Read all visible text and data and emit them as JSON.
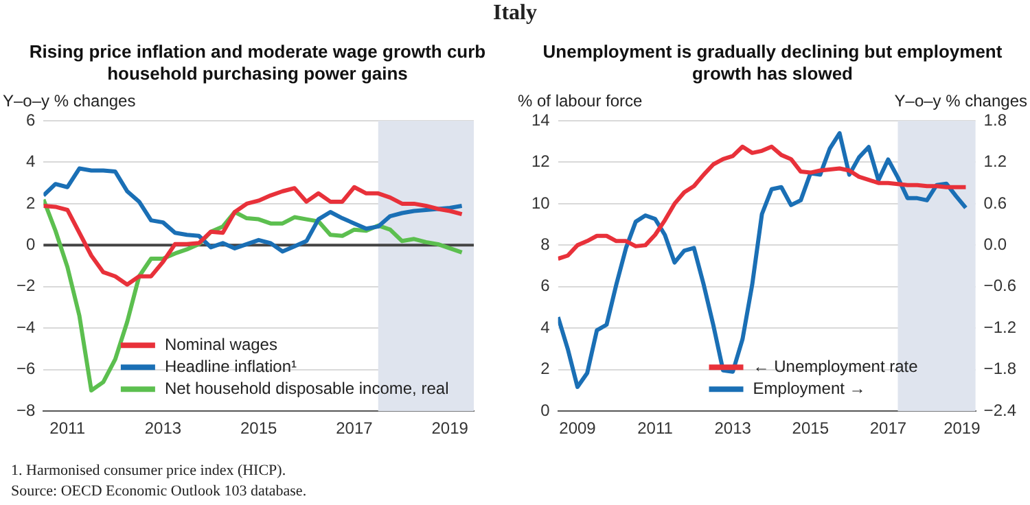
{
  "chart_data": [
    {
      "type": "line",
      "title": "Rising price inflation and moderate wage growth curb household purchasing power gains",
      "ylabel": "Y–o–y % changes",
      "annotations": [
        "Italy",
        "1.  Harmonised consumer price index (HICP).",
        "Source:  OECD Economic Outlook 103 database."
      ],
      "x": [
        2011,
        2011.25,
        2011.5,
        2011.75,
        2012,
        2012.25,
        2012.5,
        2012.75,
        2013,
        2013.25,
        2013.5,
        2013.75,
        2014,
        2014.25,
        2014.5,
        2014.75,
        2015,
        2015.25,
        2015.5,
        2015.75,
        2016,
        2016.25,
        2016.5,
        2016.75,
        2017,
        2017.25,
        2017.5,
        2017.75,
        2018,
        2018.25,
        2018.5,
        2018.75,
        2019,
        2019.25,
        2019.5,
        2019.75
      ],
      "series": [
        {
          "name": "Nominal wages",
          "color": "#e8313a",
          "values": [
            1.9,
            1.85,
            1.7,
            0.6,
            -0.5,
            -1.3,
            -1.5,
            -1.9,
            -1.5,
            -1.5,
            -0.8,
            0.05,
            0.05,
            0.1,
            0.65,
            0.6,
            1.6,
            2.0,
            2.15,
            2.4,
            2.6,
            2.75,
            2.1,
            2.5,
            2.1,
            2.1,
            2.8,
            2.5,
            2.5,
            2.3,
            2.0,
            2.0,
            1.9,
            1.75,
            1.65,
            1.5
          ]
        },
        {
          "name": "Headline inflation¹",
          "color": "#1a6fb5",
          "values": [
            2.4,
            2.95,
            2.8,
            3.7,
            3.6,
            3.6,
            3.55,
            2.6,
            2.1,
            1.2,
            1.1,
            0.6,
            0.5,
            0.45,
            -0.1,
            0.1,
            -0.15,
            0.05,
            0.25,
            0.1,
            -0.3,
            -0.05,
            0.2,
            1.25,
            1.6,
            1.3,
            1.05,
            0.8,
            0.9,
            1.4,
            1.55,
            1.65,
            1.7,
            1.75,
            1.8,
            1.9
          ]
        },
        {
          "name": "Net household disposable income, real",
          "color": "#5cbf4f",
          "values": [
            2.2,
            0.7,
            -1.05,
            -3.4,
            -7.0,
            -6.6,
            -5.5,
            -3.7,
            -1.5,
            -0.65,
            -0.65,
            -0.4,
            -0.2,
            0.05,
            0.65,
            0.9,
            1.6,
            1.3,
            1.25,
            1.05,
            1.05,
            1.35,
            1.25,
            1.15,
            0.5,
            0.45,
            0.75,
            0.7,
            0.95,
            0.75,
            0.2,
            0.3,
            0.15,
            0.05,
            -0.15,
            -0.35
          ]
        }
      ],
      "xlim": [
        2011,
        2020
      ],
      "xticks": [
        {
          "value": 2011.5,
          "label": "2011"
        },
        {
          "value": 2013.5,
          "label": "2013"
        },
        {
          "value": 2015.5,
          "label": "2015"
        },
        {
          "value": 2017.5,
          "label": "2017"
        },
        {
          "value": 2019.5,
          "label": "2019"
        }
      ],
      "ylim": [
        -8,
        6
      ],
      "yticks": [
        {
          "value": -8,
          "label": "−8"
        },
        {
          "value": -6,
          "label": "−6"
        },
        {
          "value": -4,
          "label": "−4"
        },
        {
          "value": -2,
          "label": "−2"
        },
        0,
        2,
        4,
        6
      ],
      "bands": [
        {
          "axis": "x",
          "from": 2018,
          "to": 2020,
          "color": "#dfe4ee"
        }
      ],
      "ref_lines": [
        {
          "axis": "y",
          "value": 0,
          "color": "#444444"
        }
      ],
      "grid": "y",
      "legend": "bottom",
      "marker": "none"
    },
    {
      "type": "line",
      "title": "Unemployment is gradually declining but employment growth has slowed",
      "ylabel": "% of labour force",
      "y2label": "Y–o–y % changes",
      "x": [
        2009,
        2009.25,
        2009.5,
        2009.75,
        2010,
        2010.25,
        2010.5,
        2010.75,
        2011,
        2011.25,
        2011.5,
        2011.75,
        2012,
        2012.25,
        2012.5,
        2012.75,
        2013,
        2013.25,
        2013.5,
        2013.75,
        2014,
        2014.25,
        2014.5,
        2014.75,
        2015,
        2015.25,
        2015.5,
        2015.75,
        2016,
        2016.25,
        2016.5,
        2016.75,
        2017,
        2017.25,
        2017.5,
        2017.75,
        2018,
        2018.25,
        2018.5,
        2018.75,
        2019,
        2019.25,
        2019.5
      ],
      "series": [
        {
          "name": "← Unemployment rate",
          "color": "#e8313a",
          "values": [
            7.35,
            7.5,
            8.0,
            8.2,
            8.45,
            8.45,
            8.2,
            8.2,
            7.95,
            8.0,
            8.5,
            9.2,
            10.0,
            10.55,
            10.85,
            11.4,
            11.9,
            12.15,
            12.3,
            12.75,
            12.45,
            12.55,
            12.75,
            12.35,
            12.15,
            11.55,
            11.5,
            11.6,
            11.65,
            11.7,
            11.6,
            11.3,
            11.15,
            11.0,
            11.0,
            10.95,
            10.9,
            10.9,
            10.85,
            10.85,
            10.8,
            10.8,
            10.8
          ]
        },
        {
          "name": "Employment →",
          "color": "#1a6fb5",
          "axis": "y2",
          "values": [
            -1.04,
            -1.5,
            -2.05,
            -1.85,
            -1.23,
            -1.15,
            -0.57,
            -0.04,
            0.34,
            0.43,
            0.38,
            0.15,
            -0.25,
            -0.08,
            -0.04,
            -0.57,
            -1.16,
            -1.81,
            -1.83,
            -1.36,
            -0.57,
            0.45,
            0.81,
            0.84,
            0.58,
            0.65,
            1.04,
            1.02,
            1.4,
            1.62,
            1.02,
            1.27,
            1.42,
            0.94,
            1.24,
            0.98,
            0.68,
            0.68,
            0.65,
            0.87,
            0.89,
            0.71,
            0.54
          ]
        }
      ],
      "xlim": [
        2009,
        2019.75
      ],
      "xticks": [
        {
          "value": 2009.5,
          "label": "2009"
        },
        {
          "value": 2011.5,
          "label": "2011"
        },
        {
          "value": 2013.5,
          "label": "2013"
        },
        {
          "value": 2015.5,
          "label": "2015"
        },
        {
          "value": 2017.5,
          "label": "2017"
        },
        {
          "value": 2019.4,
          "label": "2019"
        }
      ],
      "ylim": [
        0,
        14
      ],
      "yticks": [
        0,
        2,
        4,
        6,
        8,
        10,
        12,
        14
      ],
      "y2lim": [
        -2.4,
        1.8
      ],
      "y2ticks": [
        {
          "value": -2.4,
          "label": "−2.4"
        },
        {
          "value": -1.8,
          "label": "−1.8"
        },
        {
          "value": -1.2,
          "label": "−1.2"
        },
        {
          "value": -0.6,
          "label": "−0.6"
        },
        {
          "value": 0,
          "label": "0.0"
        },
        0.6,
        1.2,
        1.8
      ],
      "bands": [
        {
          "axis": "x",
          "from": 2017.75,
          "to": 2019.75,
          "color": "#dfe4ee"
        }
      ],
      "grid": "y",
      "legend": "bottom right",
      "marker": "none"
    }
  ]
}
